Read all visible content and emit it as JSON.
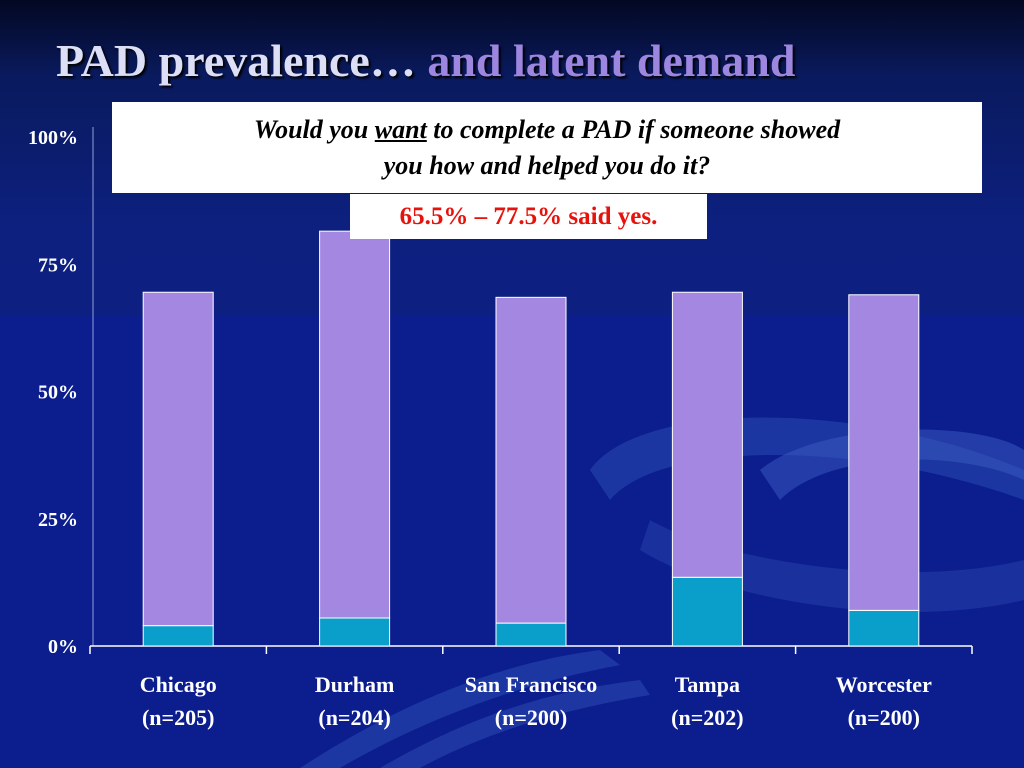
{
  "slide": {
    "title_main": "PAD prevalence…",
    "title_accent": "and latent demand"
  },
  "callout": {
    "question_pre": "Would you ",
    "question_underlined": "want",
    "question_post": " to complete a PAD if someone showed",
    "question_line2": "you how and helped you do it?",
    "answer": "65.5% – 77.5% said yes."
  },
  "colors": {
    "prevalence": "#0a9fcb",
    "latent_demand": "#a487e0",
    "title_accent": "#9d86e0",
    "answer_text": "#e8120c"
  },
  "chart_data": {
    "type": "bar",
    "stacked": true,
    "categories": [
      "Chicago",
      "Durham",
      "San Francisco",
      "Tampa",
      "Worcester"
    ],
    "category_sublabels": [
      "(n=205)",
      "(n=204)",
      "(n=200)",
      "(n=202)",
      "(n=200)"
    ],
    "series": [
      {
        "values": [
          4,
          5.5,
          4.5,
          13.5,
          7
        ],
        "color": "#0a9fcb"
      },
      {
        "values": [
          65.5,
          76,
          64,
          56,
          62
        ],
        "color": "#a487e0"
      }
    ],
    "totals": [
      69.5,
      81.5,
      68.5,
      69.5,
      69
    ],
    "ylim": [
      0,
      100
    ],
    "yticks": [
      0,
      25,
      50,
      75,
      100
    ],
    "ytick_labels": [
      "0%",
      "25%",
      "50%",
      "75%",
      "100%"
    ],
    "grid": false,
    "legend": "none"
  }
}
